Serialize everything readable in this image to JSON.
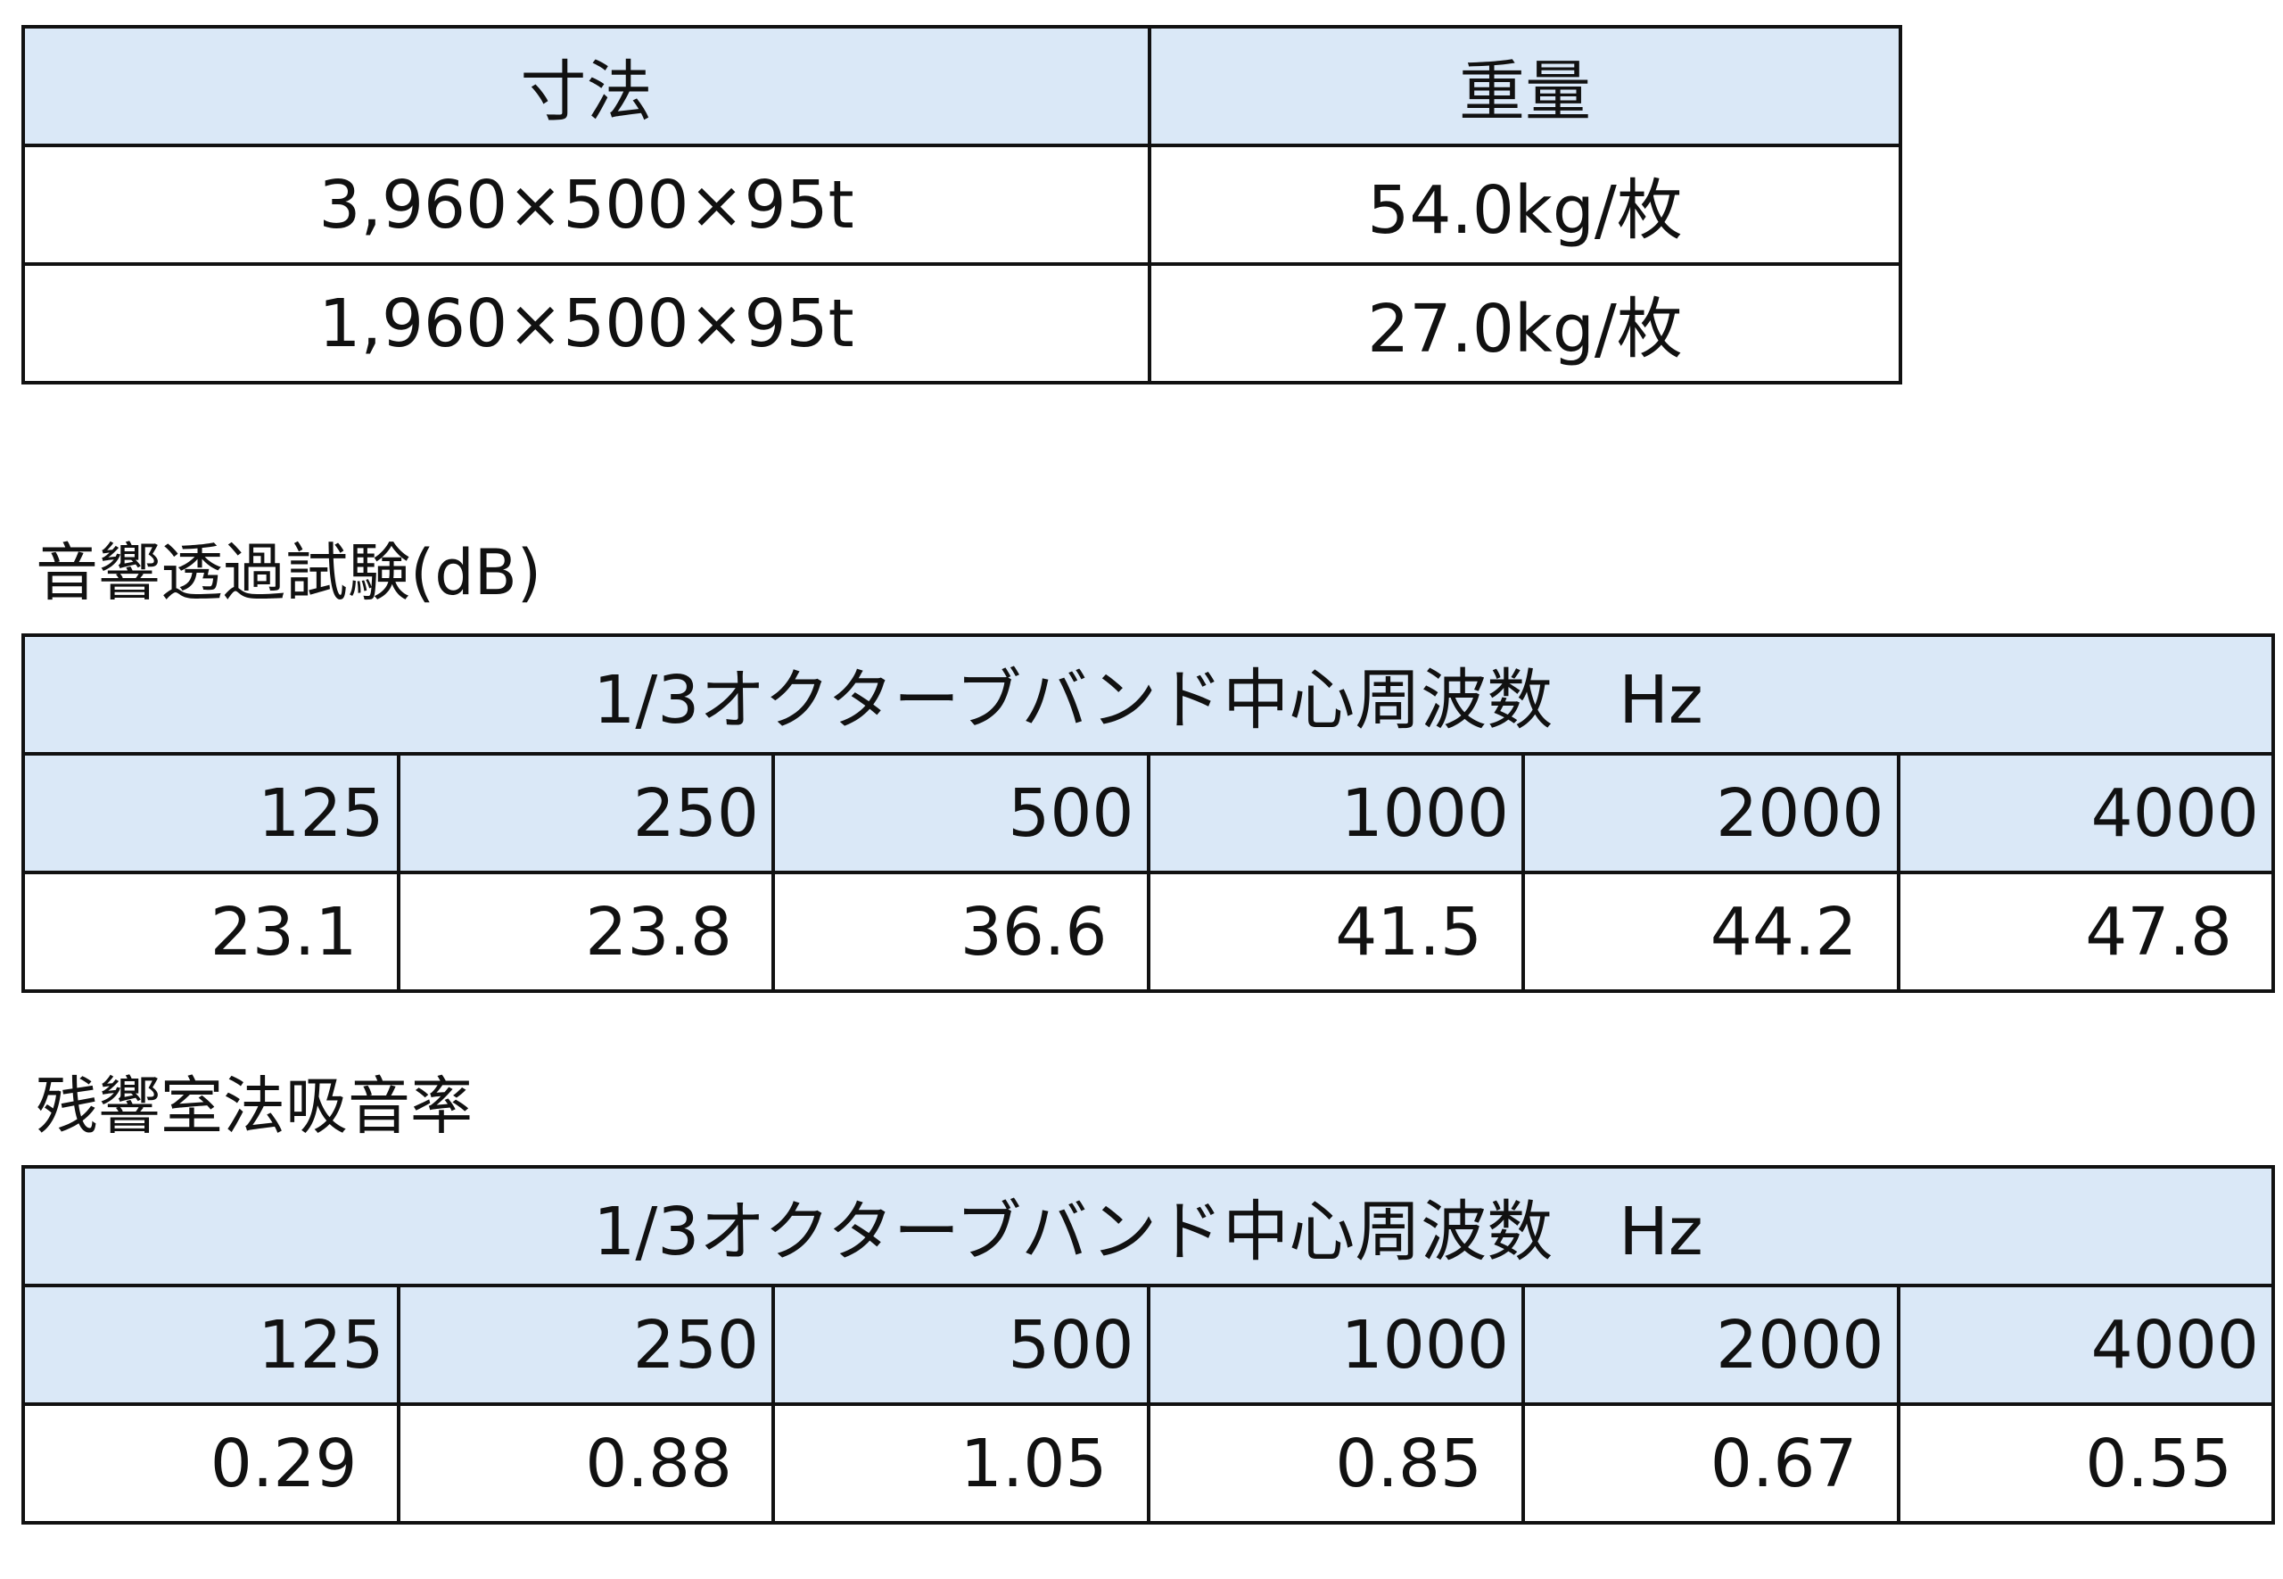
{
  "tables": [
    {
      "header": [
        "寸法",
        "重量"
      ],
      "rows": [
        [
          "3,960×500×95t",
          "54.0kg/枚"
        ],
        [
          "1,960×500×95t",
          "27.0kg/枚"
        ]
      ]
    },
    {
      "title": "音響透過試験(dB)",
      "header": "1/3オクターブバンド中心周波数　Hz",
      "columns": [
        "125",
        "250",
        "500",
        "1000",
        "2000",
        "4000"
      ],
      "values": [
        "23.1",
        "23.8",
        "36.6",
        "41.5",
        "44.2",
        "47.8"
      ]
    },
    {
      "title": "残響室法吸音率",
      "header": "1/3オクターブバンド中心周波数　Hz",
      "columns": [
        "125",
        "250",
        "500",
        "1000",
        "2000",
        "4000"
      ],
      "values": [
        "0.29",
        "0.88",
        "1.05",
        "0.85",
        "0.67",
        "0.55"
      ]
    }
  ]
}
